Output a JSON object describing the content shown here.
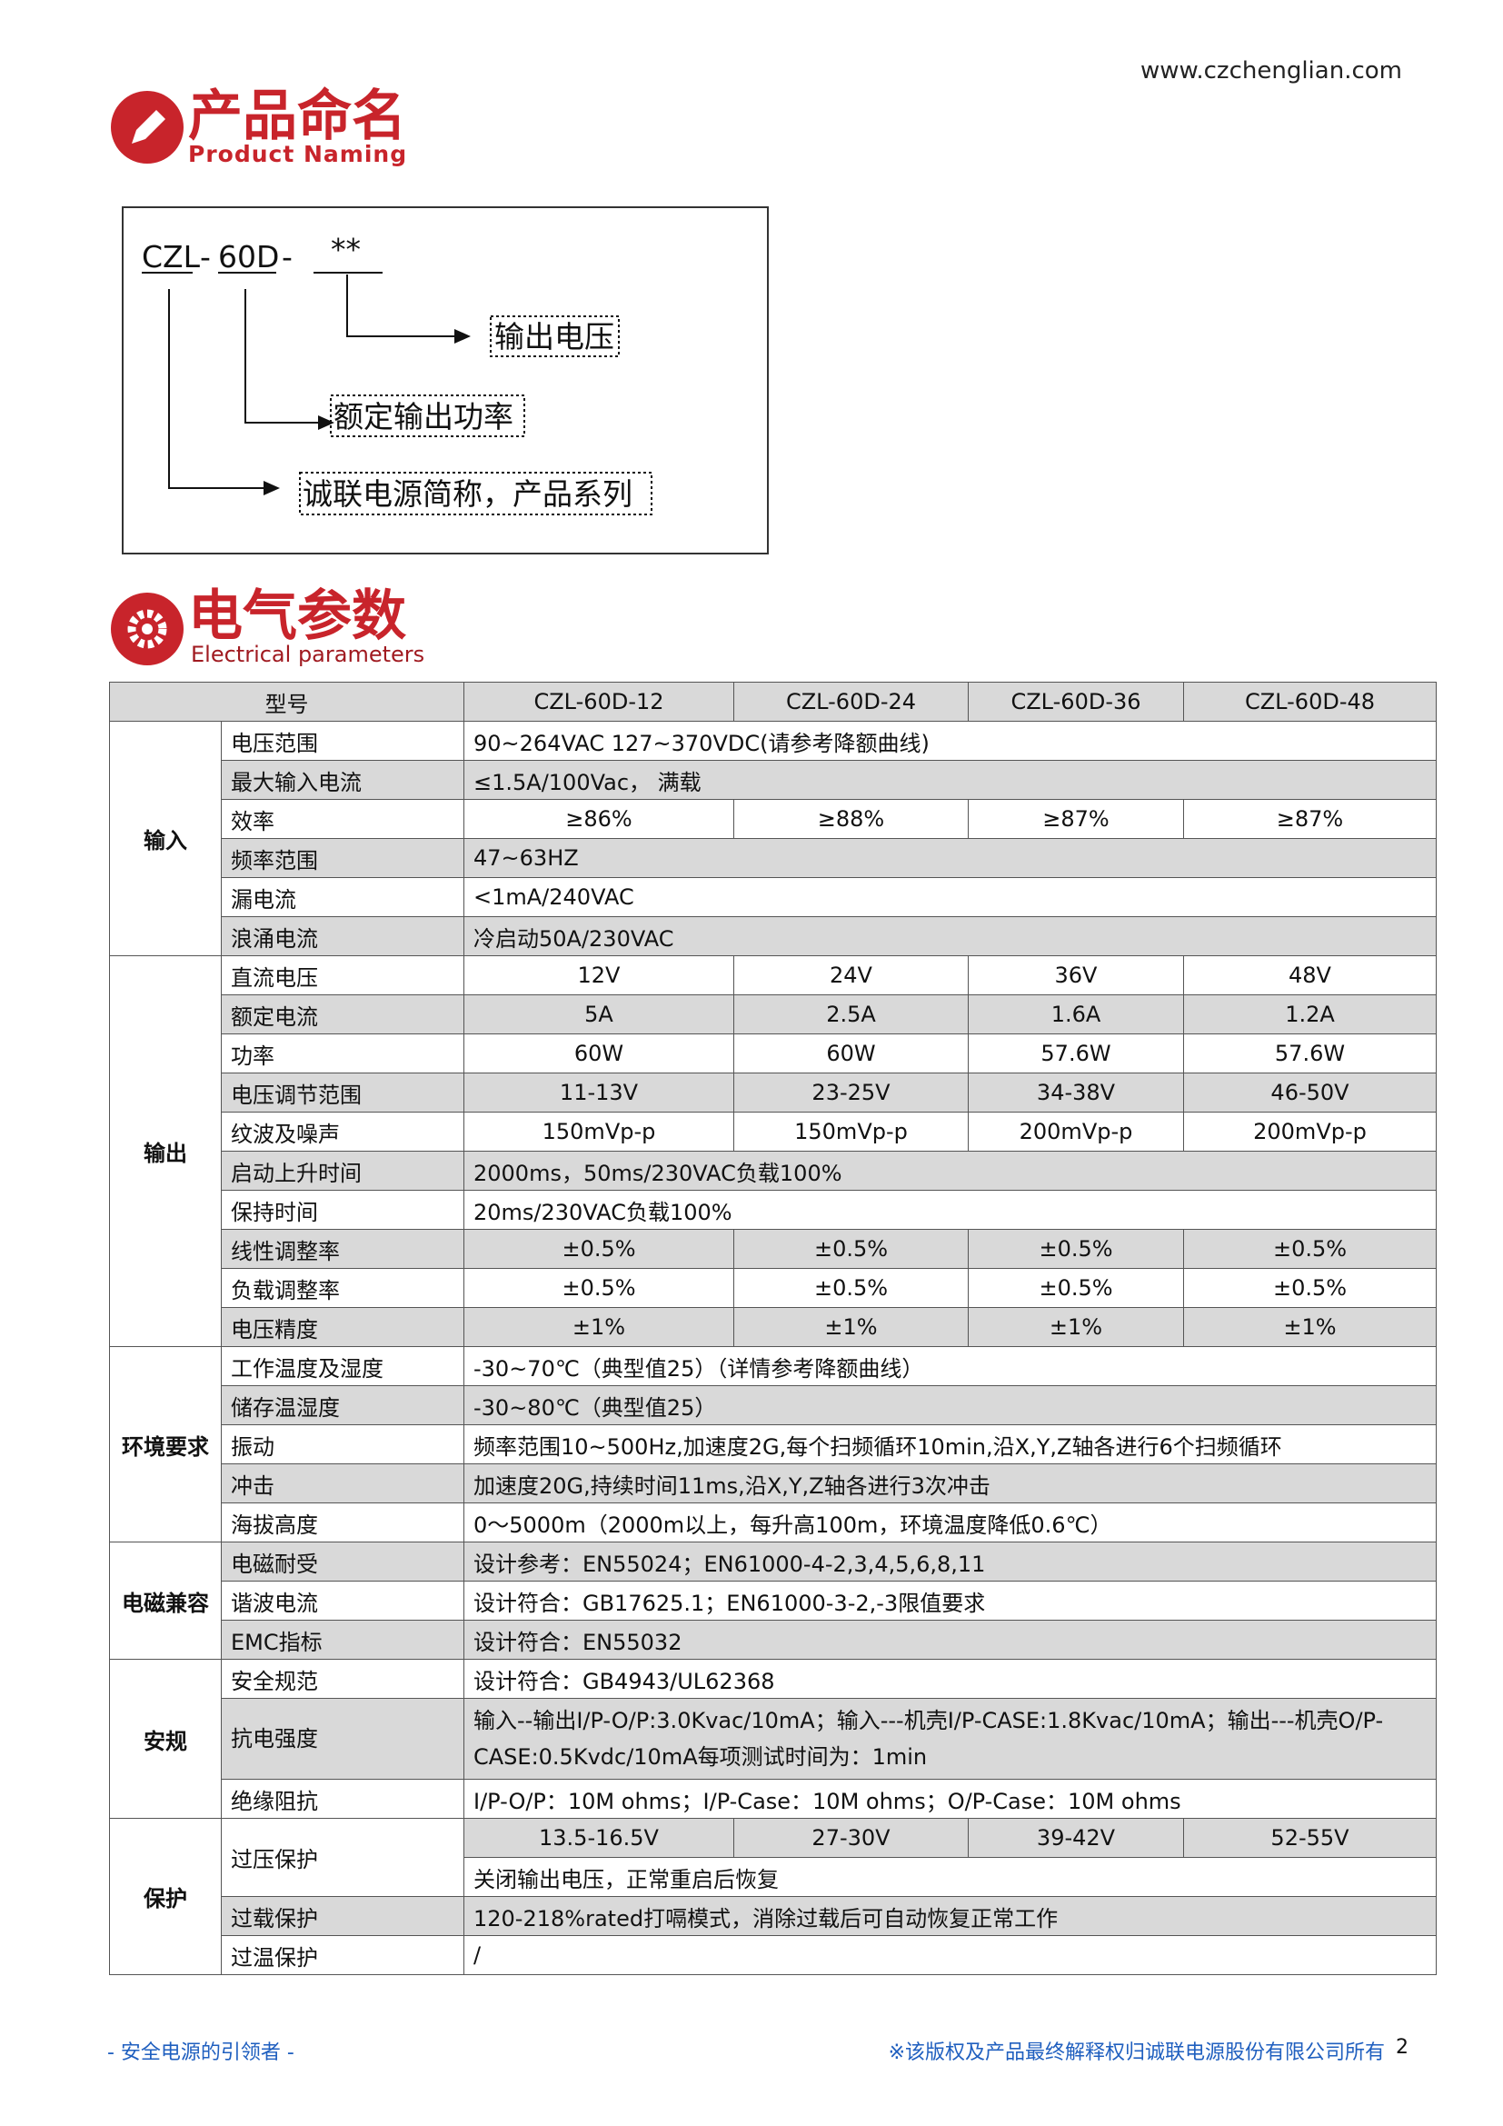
{
  "header": {
    "url": "www.czchenglian.com"
  },
  "naming": {
    "title": "产品命名",
    "subtitle": "Product Naming",
    "code": [
      "CZL",
      "-",
      "60D",
      "-",
      "**"
    ],
    "labels": [
      "输出电压",
      "额定输出功率",
      "诚联电源简称，产品系列"
    ]
  },
  "electrical": {
    "title": "电气参数",
    "subtitle": "Electrical parameters"
  },
  "table": {
    "header": [
      "型号",
      "CZL-60D-12",
      "CZL-60D-24",
      "CZL-60D-36",
      "CZL-60D-48"
    ],
    "groups": [
      {
        "name": "输入",
        "rows": [
          {
            "label": "电压范围",
            "cells": [
              "90~264VAC 127~370VDC(请参考降额曲线)"
            ]
          },
          {
            "label": "最大输入电流",
            "cells": [
              "≤1.5A/100Vac， 满载"
            ]
          },
          {
            "label": "效率",
            "cells": [
              "≥86%",
              "≥88%",
              "≥87%",
              "≥87%"
            ]
          },
          {
            "label": "频率范围",
            "cells": [
              "47~63HZ"
            ]
          },
          {
            "label": "漏电流",
            "cells": [
              "<1mA/240VAC"
            ]
          },
          {
            "label": "浪涌电流",
            "cells": [
              "冷启动50A/230VAC"
            ]
          }
        ]
      },
      {
        "name": "输出",
        "rows": [
          {
            "label": "直流电压",
            "cells": [
              "12V",
              "24V",
              "36V",
              "48V"
            ]
          },
          {
            "label": "额定电流",
            "cells": [
              "5A",
              "2.5A",
              "1.6A",
              "1.2A"
            ]
          },
          {
            "label": "功率",
            "cells": [
              "60W",
              "60W",
              "57.6W",
              "57.6W"
            ]
          },
          {
            "label": "电压调节范围",
            "cells": [
              "11-13V",
              "23-25V",
              "34-38V",
              "46-50V"
            ]
          },
          {
            "label": "纹波及噪声",
            "cells": [
              "150mVp-p",
              "150mVp-p",
              "200mVp-p",
              "200mVp-p"
            ]
          },
          {
            "label": "启动上升时间",
            "cells": [
              "2000ms，50ms/230VAC负载100%"
            ]
          },
          {
            "label": "保持时间",
            "cells": [
              "20ms/230VAC负载100%"
            ]
          },
          {
            "label": "线性调整率",
            "cells": [
              "±0.5%",
              "±0.5%",
              "±0.5%",
              "±0.5%"
            ]
          },
          {
            "label": "负载调整率",
            "cells": [
              "±0.5%",
              "±0.5%",
              "±0.5%",
              "±0.5%"
            ]
          },
          {
            "label": "电压精度",
            "cells": [
              "±1%",
              "±1%",
              "±1%",
              "±1%"
            ]
          }
        ]
      },
      {
        "name": "环境要求",
        "rows": [
          {
            "label": "工作温度及湿度",
            "cells": [
              "-30~70℃（典型值25）（详情参考降额曲线）"
            ]
          },
          {
            "label": "储存温湿度",
            "cells": [
              "-30~80℃（典型值25）"
            ]
          },
          {
            "label": "振动",
            "cells": [
              "频率范围10~500Hz,加速度2G,每个扫频循环10min,沿X,Y,Z轴各进行6个扫频循环"
            ]
          },
          {
            "label": "冲击",
            "cells": [
              "加速度20G,持续时间11ms,沿X,Y,Z轴各进行3次冲击"
            ]
          },
          {
            "label": "海拔高度",
            "cells": [
              "0～5000m（2000m以上，每升高100m，环境温度降低0.6℃）"
            ]
          }
        ]
      },
      {
        "name": "电磁兼容",
        "rows": [
          {
            "label": "电磁耐受",
            "cells": [
              "设计参考：EN55024；EN61000-4-2,3,4,5,6,8,11"
            ]
          },
          {
            "label": "谐波电流",
            "cells": [
              "设计符合：GB17625.1；EN61000-3-2,-3限值要求"
            ]
          },
          {
            "label": "EMC指标",
            "cells": [
              "设计符合：EN55032"
            ]
          }
        ]
      },
      {
        "name": "安规",
        "rows": [
          {
            "label": "安全规范",
            "cells": [
              "设计符合：GB4943/UL62368"
            ]
          },
          {
            "label": "抗电强度",
            "cells": [
              "输入--输出I/P-O/P:3.0Kvac/10mA；输入---机壳I/P-CASE:1.8Kvac/10mA；输出---机壳O/P-CASE:0.5Kvdc/10mA每项测试时间为：1min"
            ]
          },
          {
            "label": "绝缘阻抗",
            "cells": [
              "I/P-O/P：10M ohms；I/P-Case：10M ohms；O/P-Case：10M ohms"
            ]
          }
        ]
      },
      {
        "name": "保护",
        "rows": [
          {
            "label": "过压保护",
            "cells": [
              "13.5-16.5V",
              "27-30V",
              "39-42V",
              "52-55V"
            ],
            "extra": [
              "关闭输出电压，正常重启后恢复"
            ]
          },
          {
            "label": "过载保护",
            "cells": [
              "120-218%rated打嗝模式，消除过载后可自动恢复正常工作"
            ]
          },
          {
            "label": "过温保护",
            "cells": [
              "/"
            ]
          }
        ]
      }
    ]
  },
  "footer": {
    "left": "-  安全电源的引领者  -",
    "right": "※该版权及产品最终解释权归诚联电源股份有限公司所有",
    "page": "2"
  }
}
